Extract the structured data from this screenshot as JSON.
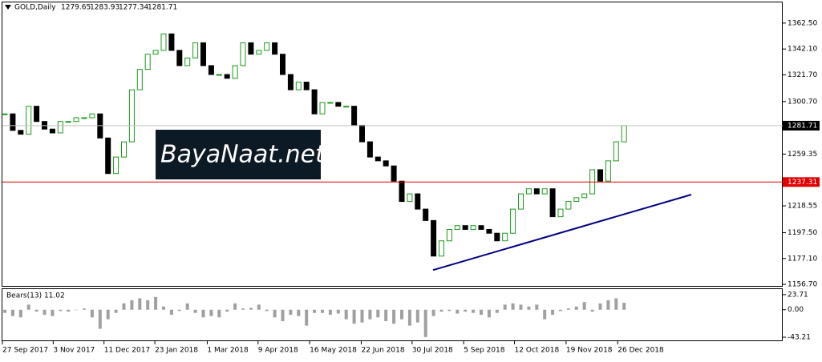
{
  "chart_data": [
    {
      "type": "candlestick",
      "symbol": "GOLD,Daily",
      "ohlc": [
        1279.65,
        1283.93,
        1277.34,
        1281.71
      ],
      "values": [
        1291,
        1278,
        1275,
        1297,
        1285,
        1279,
        1276,
        1285,
        1285,
        1288,
        1288,
        1291,
        1272,
        1244,
        1257,
        1269,
        1310,
        1326,
        1338,
        1341,
        1354,
        1341,
        1329,
        1335,
        1347,
        1329,
        1322,
        1322,
        1319,
        1329,
        1347,
        1338,
        1341,
        1347,
        1338,
        1322,
        1310,
        1316,
        1310,
        1291,
        1300,
        1300,
        1297,
        1297,
        1282,
        1269,
        1257,
        1254,
        1250,
        1238,
        1222,
        1228,
        1216,
        1207,
        1179,
        1191,
        1200,
        1203,
        1200,
        1203,
        1200,
        1197,
        1191,
        1197,
        1216,
        1228,
        1232,
        1228,
        1232,
        1210,
        1216,
        1222,
        1225,
        1228,
        1247,
        1238,
        1254,
        1269,
        1281.71
      ],
      "up_color": "#1a9a1a",
      "down_color": "#000000",
      "ylim": [
        1155.5,
        1378.8
      ],
      "yticks": [
        {
          "value": 1362.5,
          "label": "1362.50"
        },
        {
          "value": 1342.1,
          "label": "1342.10"
        },
        {
          "value": 1321.7,
          "label": "1321.70"
        },
        {
          "value": 1300.7,
          "label": "1300.70"
        },
        1259.35,
        1218.55,
        {
          "value": 1197.5,
          "label": "1197.50"
        },
        {
          "value": 1177.1,
          "label": "1177.10"
        },
        {
          "value": 1156.7,
          "label": "1156.70"
        }
      ],
      "xticks": [
        {
          "value": 0,
          "label": "27 Sep 2017"
        },
        {
          "value": 6.4,
          "label": "3 Nov 2017"
        },
        {
          "value": 12.8,
          "label": "11 Dec 2017"
        },
        {
          "value": 19.2,
          "label": "23 Jan 2018"
        },
        {
          "value": 25.8,
          "label": "1 Mar 2018"
        },
        {
          "value": 32.2,
          "label": "9 Apr 2018"
        },
        {
          "value": 38.7,
          "label": "16 May 2018"
        },
        {
          "value": 45.2,
          "label": "22 Jun 2018"
        },
        {
          "value": 51.6,
          "label": "30 Jul 2018"
        },
        {
          "value": 58.1,
          "label": "5 Sep 2018"
        },
        {
          "value": 64.5,
          "label": "12 Oct 2018"
        },
        {
          "value": 71,
          "label": "19 Nov 2018"
        },
        {
          "value": 77.5,
          "label": "26 Dec 2018"
        }
      ],
      "hline": {
        "value": 1237.31,
        "color": "#e00000"
      },
      "trendline": {
        "values": [
          1168,
          1227.4
        ],
        "color": "#000080"
      },
      "watermark": "BayaNaat.net"
    },
    {
      "type": "bar",
      "title": "Bears(13) 11.02",
      "values": [
        -5,
        -10,
        -12,
        8,
        -3,
        -8,
        -10,
        -2,
        -3,
        0,
        2,
        -12,
        -30,
        -15,
        -5,
        10,
        15,
        18,
        15,
        20,
        5,
        -8,
        -2,
        10,
        -5,
        -12,
        -10,
        -12,
        -3,
        10,
        2,
        3,
        8,
        -2,
        -12,
        -18,
        -8,
        -10,
        -25,
        -5,
        -5,
        -8,
        -6,
        -15,
        -22,
        -20,
        -15,
        -12,
        -18,
        -22,
        -15,
        -25,
        -20,
        -43,
        -10,
        -3,
        -2,
        -6,
        -3,
        -5,
        -8,
        -12,
        -5,
        8,
        10,
        8,
        5,
        8,
        -15,
        -8,
        -2,
        2,
        5,
        12,
        -3,
        10,
        15,
        18,
        11.02
      ],
      "color": "#a0a0a0",
      "ylim": [
        -48.2,
        32.4
      ],
      "yticks": [
        23.71,
        {
          "value": 0,
          "label": "0.00"
        },
        -43.21
      ]
    }
  ]
}
